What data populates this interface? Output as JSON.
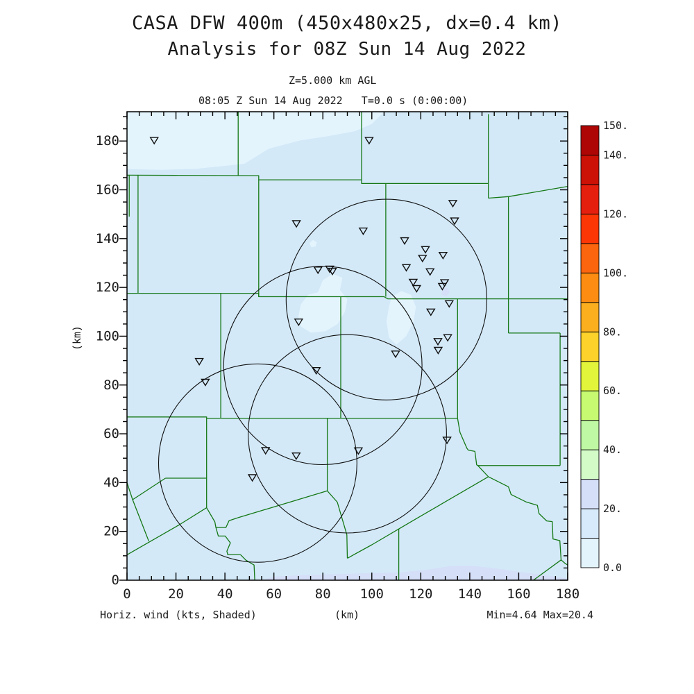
{
  "header": {
    "title": "CASA DFW 400m (450x480x25, dx=0.4 km)",
    "subtitle": "Analysis for 08Z Sun 14 Aug 2022",
    "level_label": "Z=5.000 km AGL",
    "time_label": "08:05 Z Sun 14 Aug 2022   T=0.0 s (0:00:00)"
  },
  "footer": {
    "left": "Horiz. wind (kts, Shaded)",
    "center": "(km)",
    "right": "Min=4.64 Max=20.4"
  },
  "chart_data": {
    "type": "heatmap",
    "title": "CASA DFW 400m wind analysis, shaded horizontal wind (kts) at Z=5.000 km AGL",
    "xlabel": "(km)",
    "ylabel": "(km)",
    "x_range": [
      0,
      180
    ],
    "y_range": [
      0,
      192
    ],
    "x_major_ticks": [
      0,
      20,
      40,
      60,
      80,
      100,
      120,
      140,
      160,
      180
    ],
    "x_tick_labels": [
      "0",
      "20",
      "40",
      "60",
      "80",
      "100",
      "120",
      "140",
      "160",
      "180"
    ],
    "y_major_ticks": [
      0,
      20,
      40,
      60,
      80,
      100,
      120,
      140,
      160,
      180
    ],
    "y_tick_labels": [
      "0",
      "20",
      "40",
      "60",
      "80",
      "100",
      "120",
      "140",
      "160",
      "180"
    ],
    "minor_tick_step": 5,
    "field_min": 4.64,
    "field_max": 20.4,
    "colors": {
      "map_background": "#d3e9f8",
      "pale_shade": "#e3f4fd",
      "lavender_shade": "#d5dff8",
      "county_line": "#157815",
      "circle_line": "#111111",
      "marker_line": "#111111",
      "frame": "#000000"
    },
    "colorbar": {
      "min": 0,
      "max": 150,
      "step": 10,
      "segment_colors_bottom_to_top": [
        "#e3f4fd",
        "#d7eafb",
        "#d5dff8",
        "#d2fbc8",
        "#bff9a3",
        "#c7fa70",
        "#e2f53b",
        "#fdd22a",
        "#fbaf1f",
        "#fc8d12",
        "#fb650d",
        "#fc3705",
        "#e51f0e",
        "#cc1206",
        "#ae0505"
      ],
      "labels": [
        {
          "text": "150.",
          "level": 150
        },
        {
          "text": "140.",
          "level": 140
        },
        {
          "text": "120.",
          "level": 120
        },
        {
          "text": "100.",
          "level": 100
        },
        {
          "text": "80.",
          "level": 80
        },
        {
          "text": "60.",
          "level": 60
        },
        {
          "text": "40.",
          "level": 40
        },
        {
          "text": "20.",
          "level": 20
        },
        {
          "text": "0.0",
          "level": 0
        }
      ]
    },
    "radar_range_circles_km": [
      {
        "cx": 106.0,
        "cy": 115.0,
        "r": 41.0
      },
      {
        "cx": 80.0,
        "cy": 88.0,
        "r": 40.5
      },
      {
        "cx": 90.0,
        "cy": 60.0,
        "r": 40.5
      },
      {
        "cx": 53.4,
        "cy": 48.0,
        "r": 40.5
      }
    ],
    "radar_sites_km": [
      [
        11.1,
        180.3
      ],
      [
        98.9,
        180.3
      ],
      [
        69.2,
        146.2
      ],
      [
        96.5,
        143.2
      ],
      [
        133.1,
        154.5
      ],
      [
        133.8,
        147.3
      ],
      [
        113.4,
        139.2
      ],
      [
        121.9,
        135.6
      ],
      [
        129.1,
        133.2
      ],
      [
        120.7,
        132.0
      ],
      [
        114.1,
        128.2
      ],
      [
        123.8,
        126.5
      ],
      [
        78.0,
        127.2
      ],
      [
        82.8,
        127.6
      ],
      [
        83.9,
        126.7
      ],
      [
        116.9,
        122.2
      ],
      [
        118.3,
        119.6
      ],
      [
        129.7,
        122.0
      ],
      [
        128.8,
        120.5
      ],
      [
        131.6,
        113.4
      ],
      [
        124.1,
        110.0
      ],
      [
        70.1,
        105.9
      ],
      [
        131.0,
        99.5
      ],
      [
        127.0,
        97.9
      ],
      [
        127.1,
        94.3
      ],
      [
        109.7,
        92.8
      ],
      [
        29.5,
        89.7
      ],
      [
        32.0,
        81.2
      ],
      [
        77.3,
        86.0
      ],
      [
        130.7,
        57.5
      ],
      [
        56.6,
        53.2
      ],
      [
        69.1,
        51.0
      ],
      [
        94.5,
        53.1
      ],
      [
        51.2,
        42.1
      ]
    ],
    "shading_patches_km": [
      {
        "shade": "pale",
        "polygon": [
          [
            0,
            192
          ],
          [
            105,
            192
          ],
          [
            100,
            187
          ],
          [
            93,
            184
          ],
          [
            82,
            182
          ],
          [
            71,
            180.3
          ],
          [
            58,
            176.9
          ],
          [
            48,
            170.7
          ],
          [
            40,
            169.8
          ],
          [
            28,
            168.6
          ],
          [
            14,
            168.2
          ],
          [
            0,
            168.5
          ]
        ]
      },
      {
        "shade": "pale",
        "polygon": [
          [
            70,
            108
          ],
          [
            71,
            113
          ],
          [
            74,
            117
          ],
          [
            78,
            118
          ],
          [
            80,
            123
          ],
          [
            84,
            125.5
          ],
          [
            88,
            124
          ],
          [
            87,
            119
          ],
          [
            90,
            115
          ],
          [
            89,
            110
          ],
          [
            86,
            105
          ],
          [
            81,
            102
          ],
          [
            75,
            101.5
          ],
          [
            71,
            104
          ]
        ]
      },
      {
        "shade": "pale",
        "polygon": [
          [
            106,
            106
          ],
          [
            107,
            112
          ],
          [
            108,
            116
          ],
          [
            112,
            118.5
          ],
          [
            116,
            117
          ],
          [
            118,
            112
          ],
          [
            117,
            106
          ],
          [
            114,
            100
          ],
          [
            110,
            96.5
          ],
          [
            107,
            99.5
          ]
        ]
      },
      {
        "shade": "pale",
        "polygon": [
          [
            74.5,
            138
          ],
          [
            76,
            139.5
          ],
          [
            77.5,
            138.5
          ],
          [
            77,
            136.8
          ],
          [
            75.3,
            136.5
          ]
        ]
      },
      {
        "shade": "lavender",
        "polygon": [
          [
            128.5,
            117
          ],
          [
            128.8,
            119.5
          ],
          [
            131,
            119.8
          ],
          [
            131.8,
            118
          ],
          [
            130.5,
            116.3
          ]
        ]
      },
      {
        "shade": "lavender",
        "polygon": [
          [
            55,
            0
          ],
          [
            60,
            1.5
          ],
          [
            75,
            2.2
          ],
          [
            95,
            2.8
          ],
          [
            112,
            3.2
          ],
          [
            122,
            4.2
          ],
          [
            132,
            5.8
          ],
          [
            142,
            5.8
          ],
          [
            152,
            4.6
          ],
          [
            162,
            3.2
          ],
          [
            170,
            2.2
          ],
          [
            176,
            1.2
          ],
          [
            180,
            0.8
          ],
          [
            180,
            0
          ]
        ]
      }
    ],
    "county_lines_km": [
      [
        [
          0,
          166
        ],
        [
          53.8,
          165.8
        ],
        [
          53.8,
          164.1
        ],
        [
          95.8,
          164.1
        ],
        [
          95.8,
          162.6
        ],
        [
          147.6,
          162.6
        ]
      ],
      [
        [
          45.4,
          192
        ],
        [
          45.4,
          165.8
        ]
      ],
      [
        [
          95.8,
          192
        ],
        [
          95.8,
          164.1
        ]
      ],
      [
        [
          147.6,
          191
        ],
        [
          147.6,
          156.6
        ]
      ],
      [
        [
          147.6,
          156.6
        ],
        [
          155.8,
          157.2
        ],
        [
          180,
          161.4
        ]
      ],
      [
        [
          155.8,
          157.2
        ],
        [
          155.8,
          101.3
        ]
      ],
      [
        [
          0.9,
          166
        ],
        [
          0.9,
          149
        ]
      ],
      [
        [
          4.5,
          166
        ],
        [
          4.5,
          117.6
        ]
      ],
      [
        [
          53.8,
          164.1
        ],
        [
          53.8,
          116.2
        ]
      ],
      [
        [
          105.7,
          162.6
        ],
        [
          105.7,
          116.2
        ]
      ],
      [
        [
          0,
          117.6
        ],
        [
          53.8,
          117.6
        ],
        [
          53.8,
          116.2
        ],
        [
          105,
          116.2
        ],
        [
          106.5,
          115.3
        ],
        [
          180,
          115.3
        ]
      ],
      [
        [
          38.3,
          117.6
        ],
        [
          38.3,
          66.4
        ]
      ],
      [
        [
          87.3,
          116.2
        ],
        [
          87.3,
          66.4
        ]
      ],
      [
        [
          135,
          115.3
        ],
        [
          135,
          66.4
        ]
      ],
      [
        [
          155.8,
          101.3
        ],
        [
          176.9,
          101.3
        ]
      ],
      [
        [
          176.9,
          101.3
        ],
        [
          176.9,
          47
        ]
      ],
      [
        [
          0,
          66.9
        ],
        [
          32.5,
          66.9
        ],
        [
          32.5,
          66.4
        ],
        [
          135,
          66.4
        ]
      ],
      [
        [
          135,
          66.4
        ],
        [
          136,
          60.6
        ],
        [
          138.8,
          54.1
        ],
        [
          139.4,
          53.3
        ],
        [
          142.1,
          52.8
        ],
        [
          142.8,
          47.3
        ],
        [
          143.3,
          47
        ]
      ],
      [
        [
          143.3,
          47
        ],
        [
          176.9,
          47
        ]
      ],
      [
        [
          143.3,
          47
        ],
        [
          147.6,
          42.4
        ]
      ],
      [
        [
          147.6,
          42.4
        ],
        [
          155.8,
          38.3
        ],
        [
          156.9,
          35.1
        ],
        [
          162.9,
          32.1
        ],
        [
          167.6,
          30.7
        ],
        [
          168.3,
          27.3
        ],
        [
          171.4,
          24.3
        ],
        [
          173.7,
          24
        ],
        [
          174,
          16.9
        ],
        [
          176.8,
          16.2
        ],
        [
          177.3,
          8.3
        ],
        [
          178.9,
          6.9
        ],
        [
          180,
          6.2
        ]
      ],
      [
        [
          166,
          0
        ],
        [
          177.3,
          8.3
        ]
      ],
      [
        [
          147.6,
          42.4
        ],
        [
          118.5,
          25.4
        ],
        [
          111,
          21
        ],
        [
          100,
          14.5
        ],
        [
          90,
          9
        ]
      ],
      [
        [
          111,
          21
        ],
        [
          111,
          0
        ]
      ],
      [
        [
          81.8,
          66.4
        ],
        [
          81.8,
          36.6
        ]
      ],
      [
        [
          45.3,
          25.6
        ],
        [
          81.8,
          36.6
        ]
      ],
      [
        [
          81.8,
          36.6
        ],
        [
          85.9,
          32
        ],
        [
          89.8,
          18.6
        ],
        [
          90,
          9
        ]
      ],
      [
        [
          32.5,
          66.4
        ],
        [
          32.5,
          29.7
        ]
      ],
      [
        [
          15.7,
          41.8
        ],
        [
          32.5,
          41.8
        ]
      ],
      [
        [
          15.7,
          41.8
        ],
        [
          2.3,
          33
        ],
        [
          8.9,
          16
        ]
      ],
      [
        [
          0,
          40
        ],
        [
          2.3,
          33
        ]
      ],
      [
        [
          0,
          10.4
        ],
        [
          21.2,
          22.6
        ],
        [
          32.5,
          29.7
        ]
      ],
      [
        [
          32.5,
          29.7
        ],
        [
          35.9,
          23.9
        ],
        [
          36.3,
          21.6
        ],
        [
          40.4,
          21.6
        ],
        [
          41.7,
          24.4
        ],
        [
          45.3,
          25.6
        ]
      ],
      [
        [
          36.3,
          21.6
        ],
        [
          37.3,
          18.1
        ],
        [
          40.1,
          18.1
        ],
        [
          42.2,
          15.3
        ],
        [
          40.8,
          11.9
        ],
        [
          41.2,
          10.4
        ],
        [
          46.4,
          10.4
        ],
        [
          48.6,
          8.2
        ],
        [
          51.9,
          6.2
        ],
        [
          52.2,
          0
        ]
      ]
    ]
  }
}
